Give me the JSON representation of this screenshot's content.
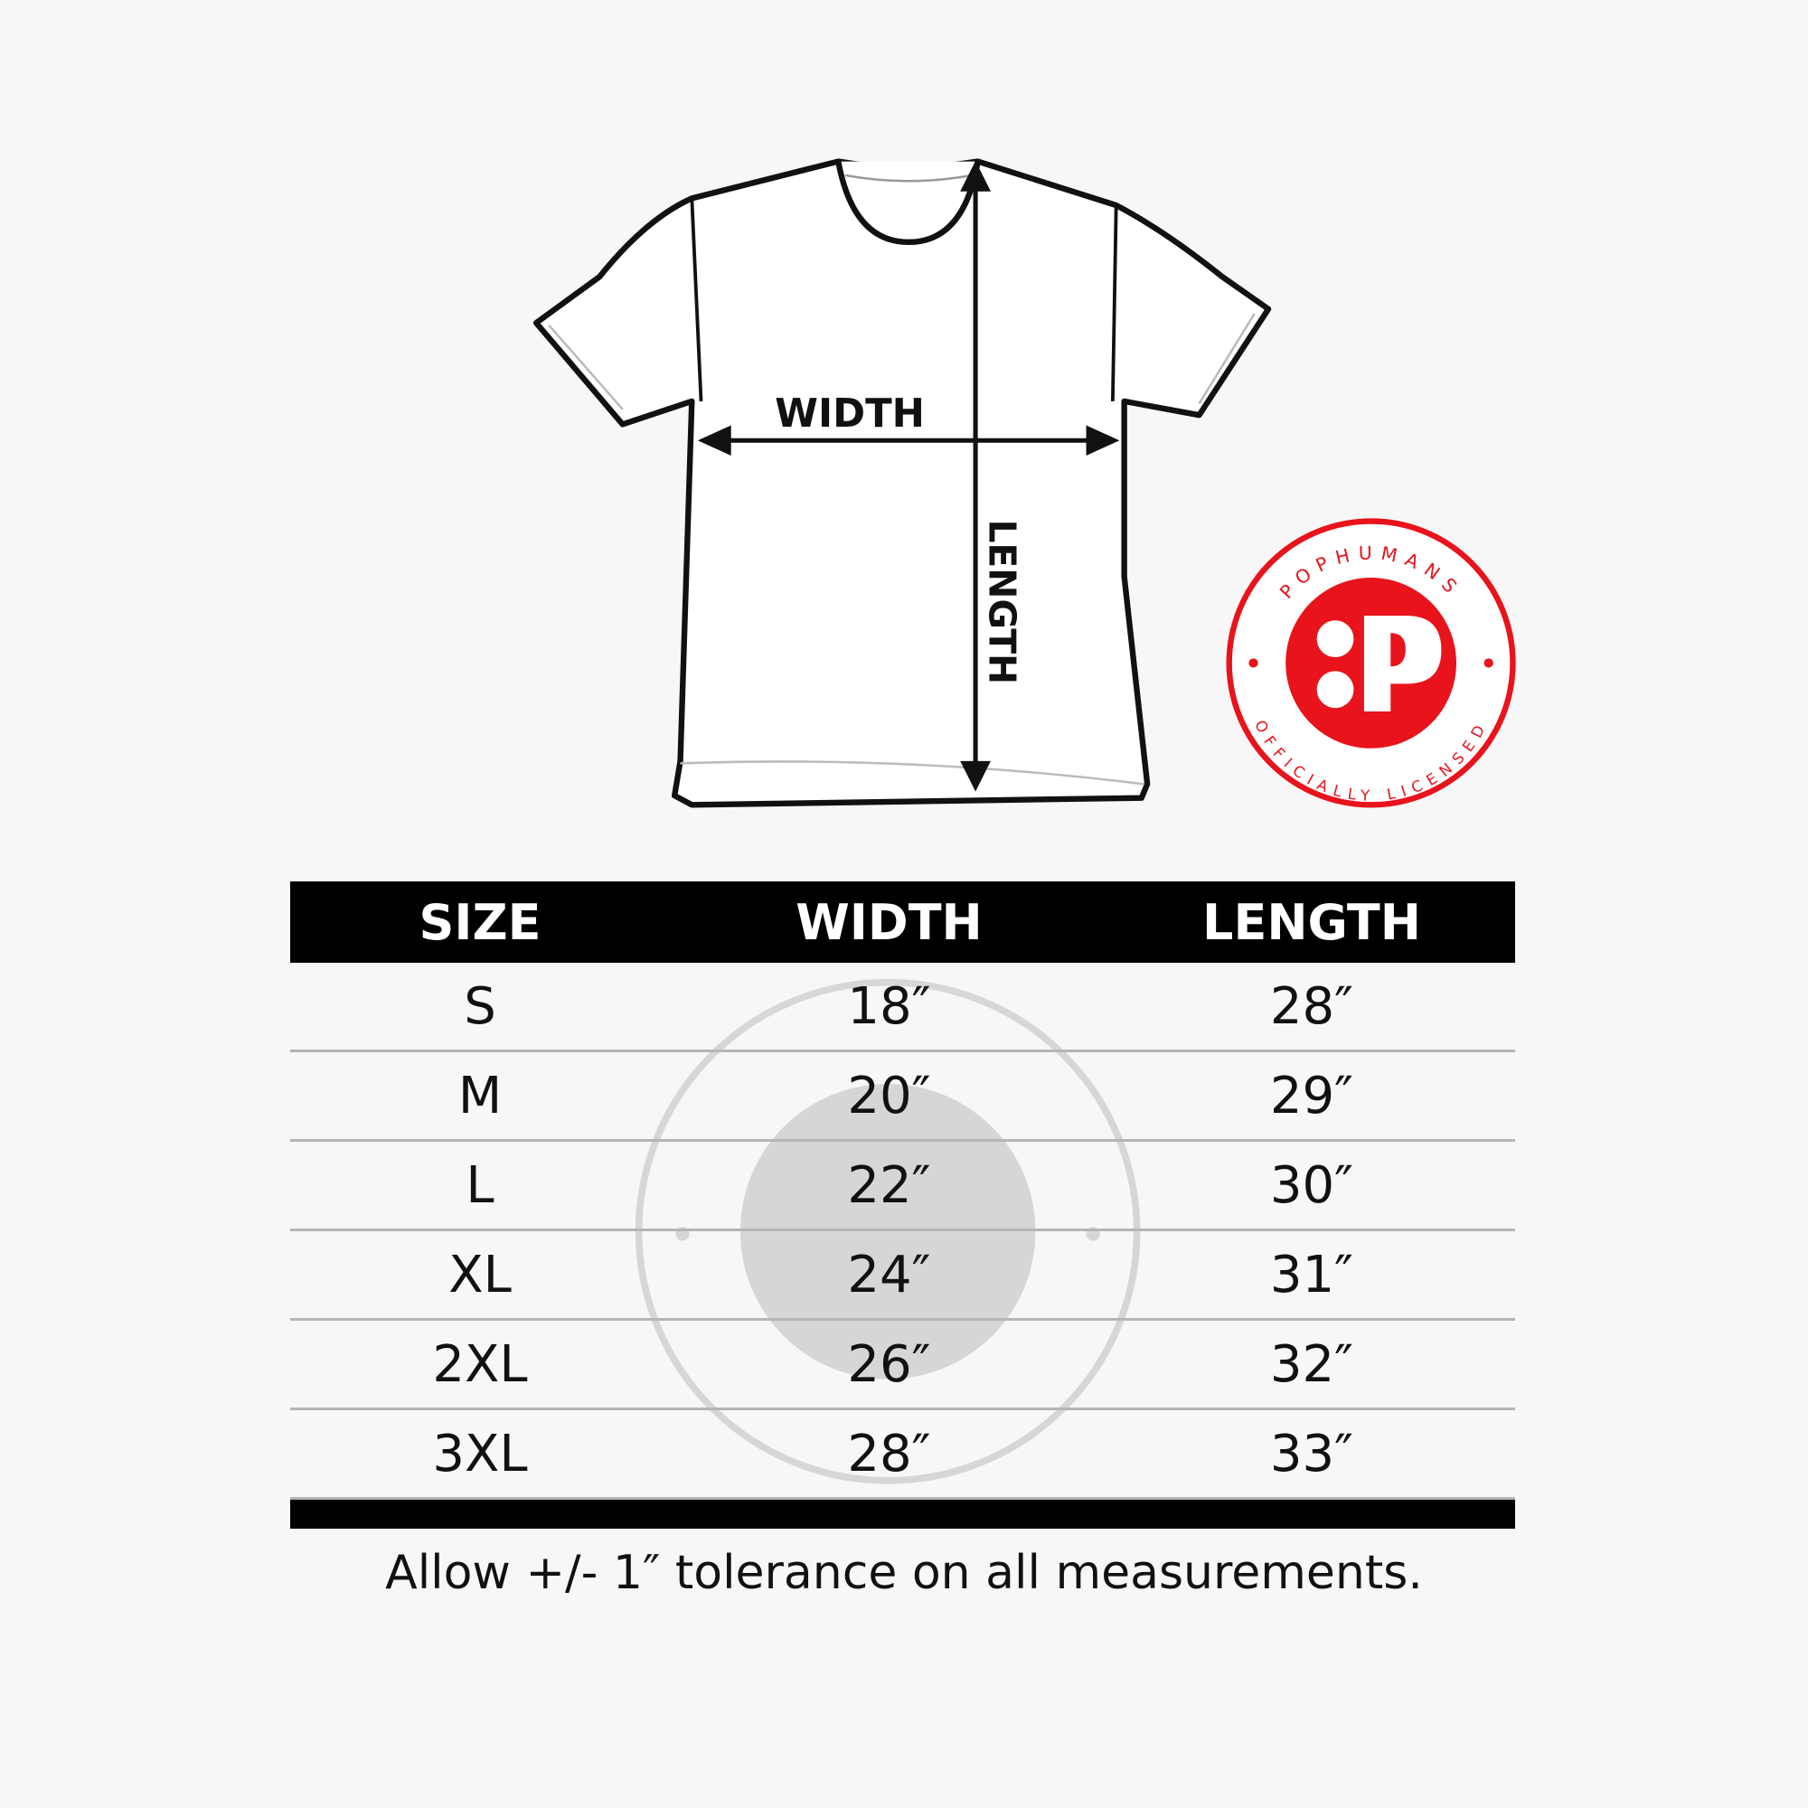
{
  "diagram": {
    "width_label": "WIDTH",
    "length_label": "LENGTH"
  },
  "badge": {
    "brand": "POPHUMANS",
    "subtitle": "OFFICIALLY LICENSED",
    "color": "#e8131b"
  },
  "table": {
    "headers": [
      "SIZE",
      "WIDTH",
      "LENGTH"
    ],
    "rows": [
      [
        "S",
        "18″",
        "28″"
      ],
      [
        "M",
        "20″",
        "29″"
      ],
      [
        "L",
        "22″",
        "30″"
      ],
      [
        "XL",
        "24″",
        "31″"
      ],
      [
        "2XL",
        "26″",
        "32″"
      ],
      [
        "3XL",
        "28″",
        "33″"
      ]
    ]
  },
  "footer": "Allow +/- 1″ tolerance on all measurements."
}
